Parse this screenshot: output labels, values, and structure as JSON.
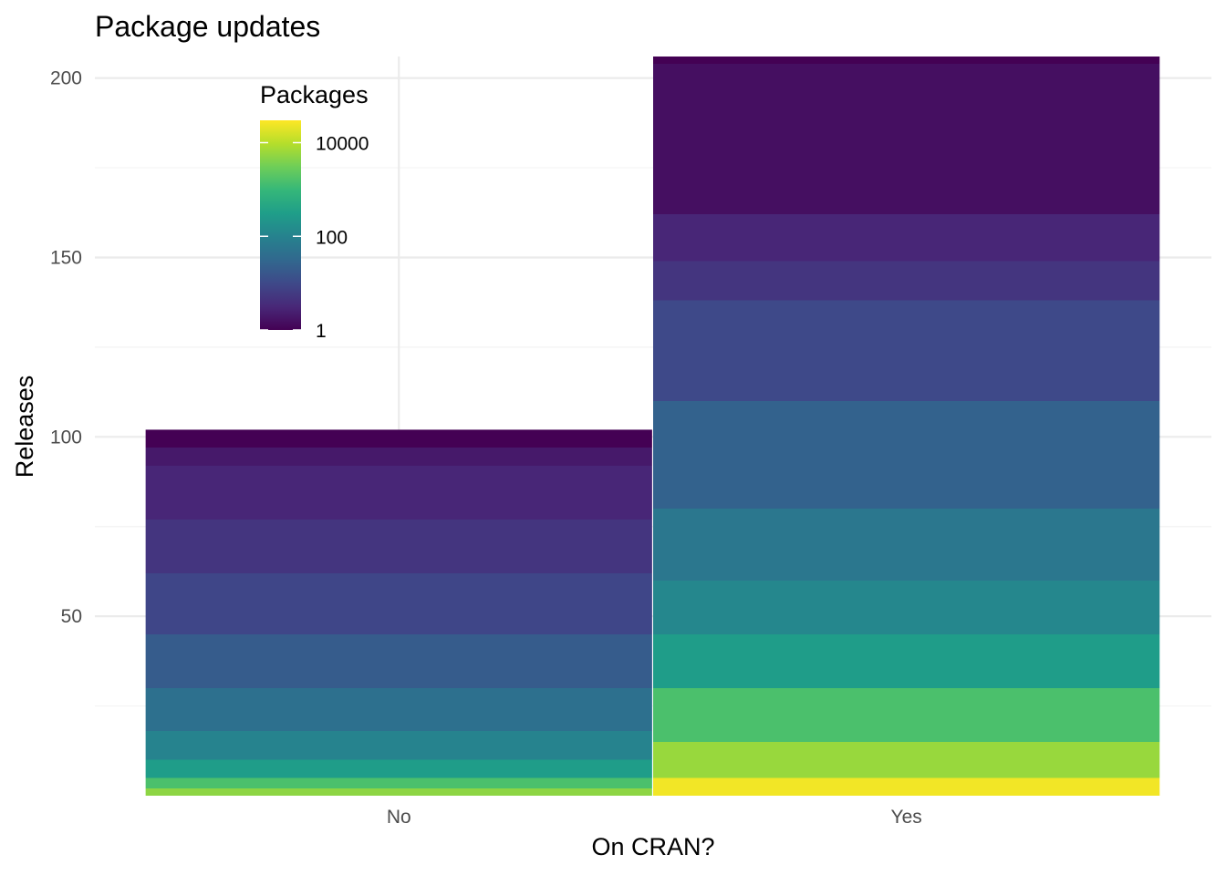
{
  "chart_data": {
    "type": "bar",
    "title": "Package updates",
    "xlabel": "On CRAN?",
    "ylabel": "Releases",
    "categories": [
      "No",
      "Yes"
    ],
    "totals": [
      102,
      206
    ],
    "ylim": [
      0,
      206
    ],
    "yticks": [
      50,
      100,
      150,
      200
    ],
    "grid": true,
    "legend": {
      "title": "Packages",
      "placement": "top-left inside plot",
      "scale": "log10",
      "ticks": [
        1,
        100,
        10000
      ],
      "tick_labels": [
        "1",
        "100",
        "10000"
      ],
      "range": [
        1,
        30000
      ]
    },
    "colormap": [
      "#440154",
      "#482878",
      "#3e4989",
      "#31688e",
      "#26828e",
      "#1f9e89",
      "#35b779",
      "#6ece58",
      "#b5de2b",
      "#fde725"
    ],
    "bar_color_stops": [
      [
        {
          "from": 97,
          "to": 102,
          "packages": 1
        },
        {
          "from": 92,
          "to": 97,
          "packages": 2
        },
        {
          "from": 77,
          "to": 92,
          "packages": 3
        },
        {
          "from": 62,
          "to": 77,
          "packages": 5
        },
        {
          "from": 45,
          "to": 62,
          "packages": 9
        },
        {
          "from": 30,
          "to": 45,
          "packages": 20
        },
        {
          "from": 18,
          "to": 30,
          "packages": 45
        },
        {
          "from": 10,
          "to": 18,
          "packages": 100
        },
        {
          "from": 5,
          "to": 10,
          "packages": 300
        },
        {
          "from": 2,
          "to": 5,
          "packages": 1500
        },
        {
          "from": 0,
          "to": 2,
          "packages": 5000
        }
      ],
      [
        {
          "from": 204,
          "to": 206,
          "packages": 1
        },
        {
          "from": 162,
          "to": 204,
          "packages": 1.5
        },
        {
          "from": 149,
          "to": 162,
          "packages": 3
        },
        {
          "from": 138,
          "to": 149,
          "packages": 5
        },
        {
          "from": 110,
          "to": 138,
          "packages": 10
        },
        {
          "from": 80,
          "to": 110,
          "packages": 25
        },
        {
          "from": 60,
          "to": 80,
          "packages": 60
        },
        {
          "from": 45,
          "to": 60,
          "packages": 120
        },
        {
          "from": 30,
          "to": 45,
          "packages": 300
        },
        {
          "from": 15,
          "to": 30,
          "packages": 1500
        },
        {
          "from": 5,
          "to": 15,
          "packages": 6000
        },
        {
          "from": 0,
          "to": 5,
          "packages": 25000
        }
      ]
    ]
  }
}
